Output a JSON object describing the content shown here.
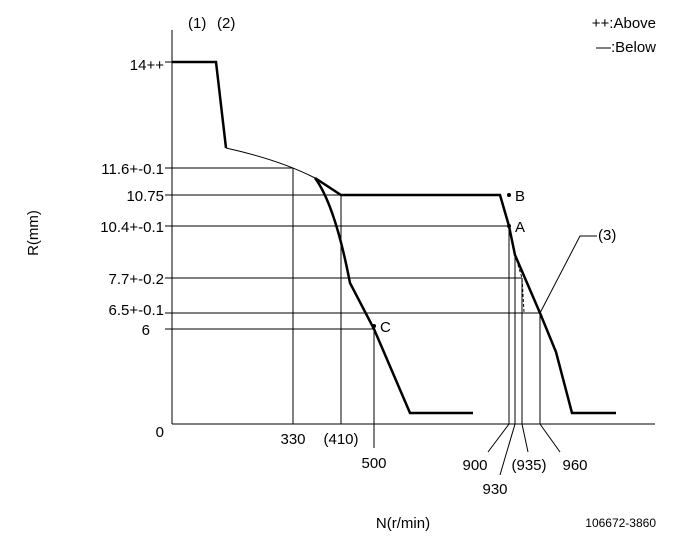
{
  "header": {
    "markers": [
      "(1)",
      "(2)"
    ],
    "legend": [
      "++:Above",
      "—:Below"
    ]
  },
  "y_axis": {
    "label": "R(mm)",
    "ticks": [
      "14++",
      "11.6+-0.1",
      "10.75",
      "10.4+-0.1",
      "7.7+-0.2",
      "6.5+-0.1",
      "6",
      "0"
    ]
  },
  "x_axis": {
    "label": "N(r/min)",
    "ticks": [
      "330",
      "(410)",
      "500",
      "900",
      "930",
      "(935)",
      "960"
    ]
  },
  "points": [
    "A",
    "B",
    "C",
    "(3)"
  ],
  "code": "106672-3860"
}
